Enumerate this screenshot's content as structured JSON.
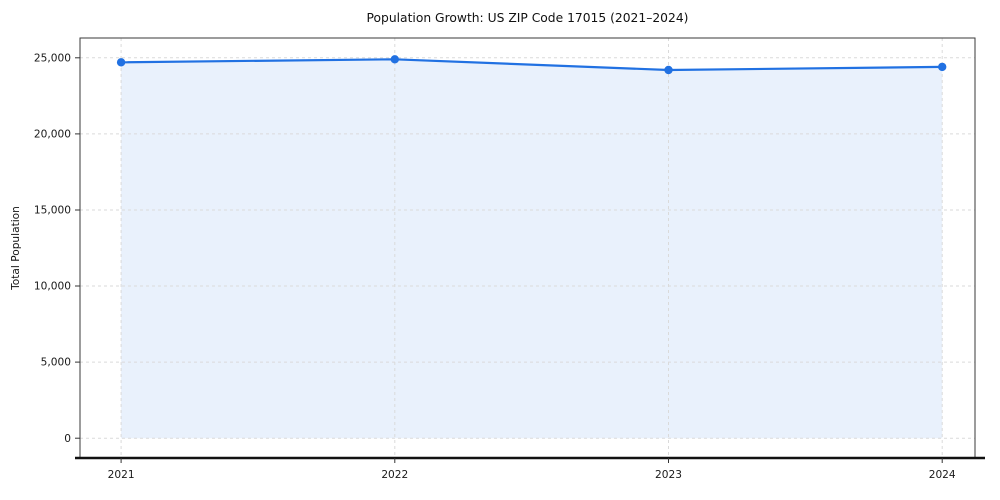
{
  "chart_data": {
    "type": "area",
    "title": "Population Growth: US ZIP Code 17015 (2021–2024)",
    "xlabel": "",
    "ylabel": "Total Population",
    "x": [
      2021,
      2022,
      2023,
      2024
    ],
    "series": [
      {
        "name": "Total Population",
        "values": [
          24700,
          24900,
          24200,
          24400
        ]
      }
    ],
    "xticks": [
      2021,
      2022,
      2023,
      2024
    ],
    "yticks": [
      0,
      5000,
      10000,
      15000,
      20000,
      25000
    ],
    "xlim": [
      2020.85,
      2024.12
    ],
    "ylim": [
      -1300,
      26300
    ],
    "grid": true,
    "grid_style": "dashed",
    "legend": "none",
    "line_color": "#2171e2",
    "fill_color": "#e9f1fc",
    "marker": "circle",
    "grid_color": "#dadada",
    "tick_color": "#1a1a1a"
  }
}
